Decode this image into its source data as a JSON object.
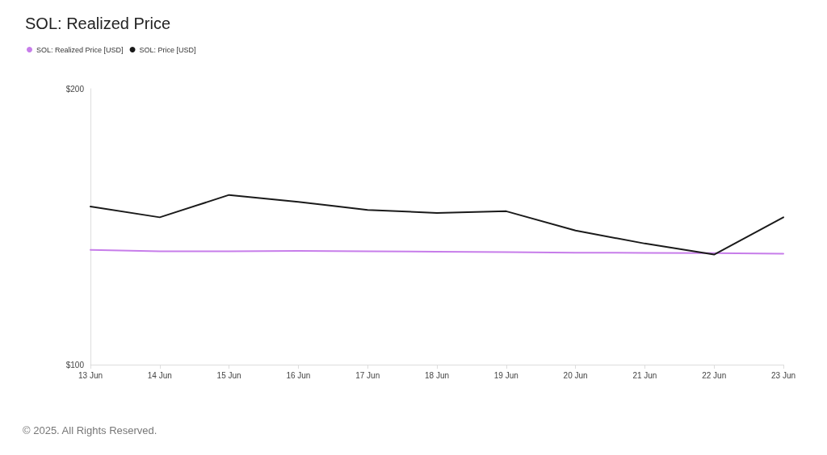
{
  "chart_data": {
    "type": "line",
    "title": "SOL: Realized Price",
    "categories": [
      "13 Jun",
      "14 Jun",
      "15 Jun",
      "16 Jun",
      "17 Jun",
      "18 Jun",
      "19 Jun",
      "20 Jun",
      "21 Jun",
      "22 Jun",
      "23 Jun"
    ],
    "series": [
      {
        "name": "SOL: Realized Price [USD]",
        "color": "#c77dea",
        "values": [
          141.6,
          141.1,
          141.1,
          141.2,
          141.1,
          140.9,
          140.8,
          140.6,
          140.5,
          140.4,
          140.2
        ]
      },
      {
        "name": "SOL: Price [USD]",
        "color": "#1a1a1a",
        "values": [
          157.3,
          153.4,
          161.5,
          159.0,
          156.1,
          155.0,
          155.6,
          148.6,
          143.9,
          139.9,
          153.4
        ]
      }
    ],
    "ylim": [
      100,
      200
    ],
    "yticks": [
      {
        "value": 100,
        "label": "$100"
      },
      {
        "value": 200,
        "label": "$200"
      }
    ],
    "grid": false,
    "legend": "top left",
    "marker": "none",
    "line_style": "solid",
    "annotations": [
      "© 2025. All Rights Reserved."
    ]
  }
}
